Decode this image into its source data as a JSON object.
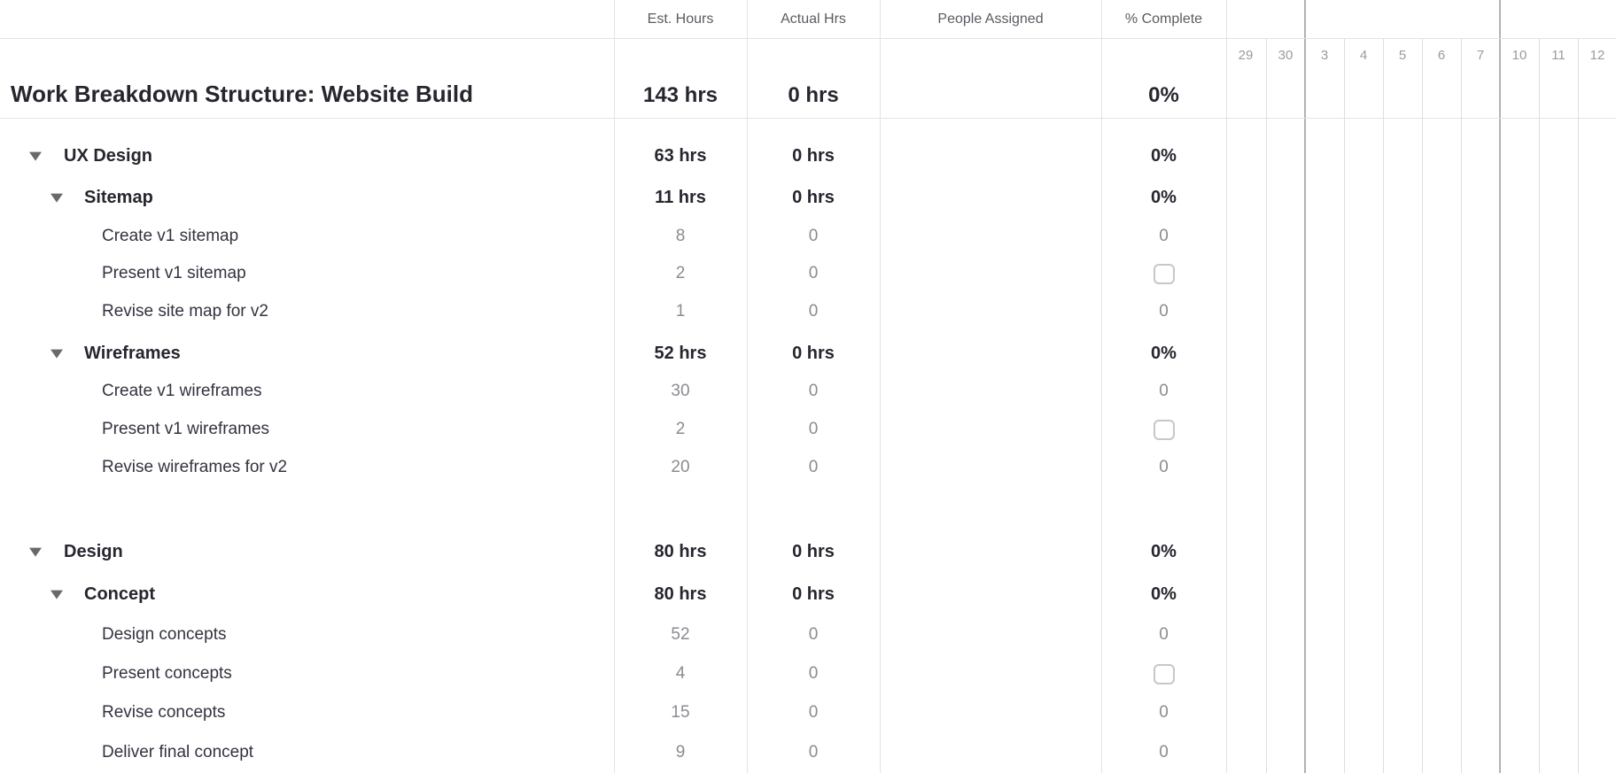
{
  "sheet_title_row": {
    "name": "Work Breakdown Structure: Website Build",
    "est": "143 hrs",
    "actual": "0 hrs",
    "pct": "0%"
  },
  "header": {
    "columns": [
      "Est. Hours",
      "Actual Hrs",
      "People Assigned",
      "% Complete"
    ],
    "timeline_days": [
      "29",
      "30",
      "3",
      "4",
      "5",
      "6",
      "7",
      "10",
      "11",
      "12"
    ]
  },
  "rows": [
    {
      "name": "Work Breakdown Structure: Website Build",
      "level": 0,
      "type": "title",
      "est": "143 hrs",
      "actual": "0 hrs",
      "pct": "0%"
    },
    {
      "name": "UX Design",
      "level": 1,
      "type": "section",
      "est": "63 hrs",
      "actual": "0 hrs",
      "pct": "0%"
    },
    {
      "name": "Sitemap",
      "level": 2,
      "type": "section",
      "est": "11 hrs",
      "actual": "0 hrs",
      "pct": "0%"
    },
    {
      "name": "Create v1 sitemap",
      "level": 3,
      "type": "task",
      "est": "8",
      "actual": "0",
      "pct": "0"
    },
    {
      "name": "Present v1 sitemap",
      "level": 3,
      "type": "task",
      "est": "2",
      "actual": "0",
      "pct": "checkbox"
    },
    {
      "name": "Revise site map for v2",
      "level": 3,
      "type": "task",
      "est": "1",
      "actual": "0",
      "pct": "0"
    },
    {
      "name": "Wireframes",
      "level": 2,
      "type": "section",
      "est": "52 hrs",
      "actual": "0 hrs",
      "pct": "0%"
    },
    {
      "name": "Create v1 wireframes",
      "level": 3,
      "type": "task",
      "est": "30",
      "actual": "0",
      "pct": "0"
    },
    {
      "name": "Present v1 wireframes",
      "level": 3,
      "type": "task",
      "est": "2",
      "actual": "0",
      "pct": "checkbox"
    },
    {
      "name": "Revise wireframes for v2",
      "level": 3,
      "type": "task",
      "est": "20",
      "actual": "0",
      "pct": "0"
    },
    {
      "name": "",
      "level": 0,
      "type": "empty",
      "est": "",
      "actual": "",
      "pct": ""
    },
    {
      "name": "Design",
      "level": 1,
      "type": "section",
      "est": "80 hrs",
      "actual": "0 hrs",
      "pct": "0%"
    },
    {
      "name": "Concept",
      "level": 2,
      "type": "section",
      "est": "80 hrs",
      "actual": "0 hrs",
      "pct": "0%"
    },
    {
      "name": "Design concepts",
      "level": 3,
      "type": "task",
      "est": "52",
      "actual": "0",
      "pct": "0"
    },
    {
      "name": "Present concepts",
      "level": 3,
      "type": "task",
      "est": "4",
      "actual": "0",
      "pct": "checkbox"
    },
    {
      "name": "Revise concepts",
      "level": 3,
      "type": "task",
      "est": "15",
      "actual": "0",
      "pct": "0"
    },
    {
      "name": "Deliver final concept",
      "level": 3,
      "type": "task",
      "est": "9",
      "actual": "0",
      "pct": "0"
    }
  ],
  "colors": {
    "text_dark": "#26262f",
    "text_task": "#333340",
    "text_gray_value": "#8b8b91",
    "header_text": "#5b5b62",
    "day_text": "#9b9b9f",
    "grid_light": "#e3e3e6",
    "grid_week": "#b2b2b6",
    "checkbox_border": "#c7c7ca"
  }
}
